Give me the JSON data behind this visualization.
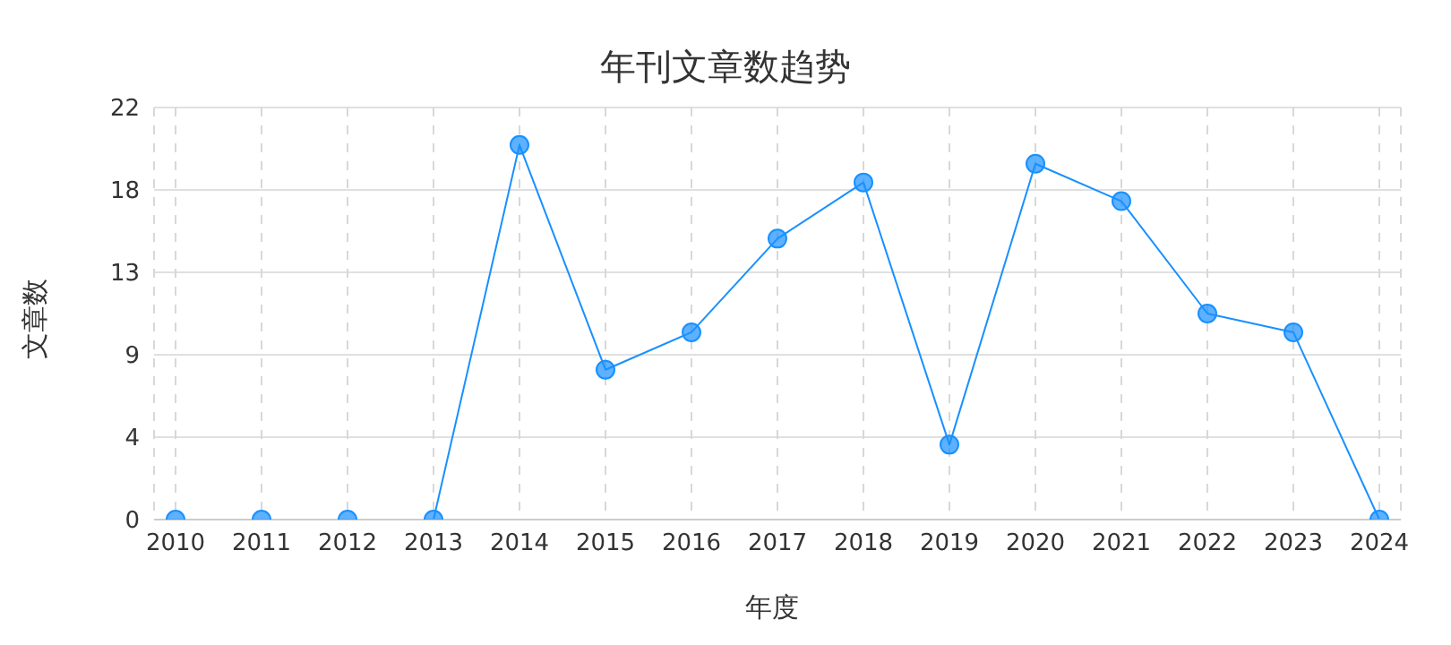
{
  "chart_data": {
    "type": "line",
    "title": "年刊文章数趋势",
    "xlabel": "年度",
    "ylabel": "文章数",
    "categories": [
      "2010",
      "2011",
      "2012",
      "2013",
      "2014",
      "2015",
      "2016",
      "2017",
      "2018",
      "2019",
      "2020",
      "2021",
      "2022",
      "2023",
      "2024"
    ],
    "series": [
      {
        "color": "#1890ff",
        "values": [
          0,
          0,
          0,
          0,
          20,
          8,
          10,
          15,
          18,
          4,
          19,
          17,
          11,
          10,
          0
        ]
      }
    ],
    "ylim": [
      0,
      22
    ],
    "yticks": [
      0,
      {
        "value": 4.4,
        "label": "4"
      },
      {
        "value": 8.8,
        "label": "9"
      },
      {
        "value": 13.2,
        "label": "13"
      },
      {
        "value": 17.6,
        "label": "18"
      },
      22
    ],
    "grid": true,
    "marker": "circle",
    "line_style": "solid"
  }
}
